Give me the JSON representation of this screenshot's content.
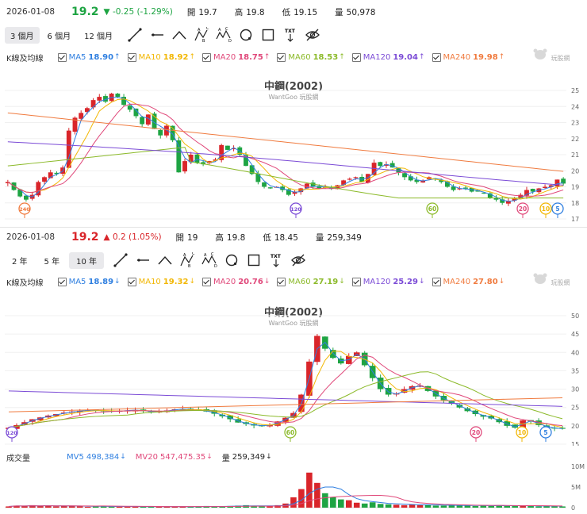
{
  "colors": {
    "up": "#d9252a",
    "down": "#1ea443",
    "ma5": "#2f7fe0",
    "ma10": "#f2b705",
    "ma20": "#e0487a",
    "ma60": "#8cba2a",
    "ma120": "#7b4bd6",
    "ma240": "#f07b3f"
  },
  "top": {
    "quote": {
      "date": "2026-01-08",
      "price": "19.2",
      "change": "▼ -0.25 (-1.29%)",
      "open_label": "開",
      "open": "19.7",
      "high_label": "高",
      "high": "19.8",
      "low_label": "低",
      "low": "19.15",
      "vol_label": "量",
      "volume": "50,978"
    },
    "ranges": [
      "3 個月",
      "6 個月",
      "12 個月"
    ],
    "active_range": 0,
    "ma_title": "K線及均線",
    "ma": [
      {
        "name": "MA5",
        "value": "18.90",
        "arrow": "↑",
        "color": "#2f7fe0"
      },
      {
        "name": "MA10",
        "value": "18.92",
        "arrow": "↑",
        "color": "#f2b705"
      },
      {
        "name": "MA20",
        "value": "18.75",
        "arrow": "↑",
        "color": "#e0487a"
      },
      {
        "name": "MA60",
        "value": "18.53",
        "arrow": "↑",
        "color": "#8cba2a"
      },
      {
        "name": "MA120",
        "value": "19.04",
        "arrow": "↑",
        "color": "#7b4bd6"
      },
      {
        "name": "MA240",
        "value": "19.98",
        "arrow": "↑",
        "color": "#f07b3f"
      }
    ],
    "title": "中鋼(2002)",
    "subtitle": "WantGoo 玩股網",
    "watermark": "玩股網"
  },
  "bottom": {
    "quote": {
      "date": "2026-01-08",
      "price": "19.2",
      "change": "▲ 0.2 (1.05%)",
      "open_label": "開",
      "open": "19",
      "high_label": "高",
      "high": "19.8",
      "low_label": "低",
      "low": "18.45",
      "vol_label": "量",
      "volume": "259,349"
    },
    "ranges": [
      "2 年",
      "5 年",
      "10 年"
    ],
    "active_range": 2,
    "ma_title": "K線及均線",
    "ma": [
      {
        "name": "MA5",
        "value": "18.89",
        "arrow": "↓",
        "color": "#2f7fe0"
      },
      {
        "name": "MA10",
        "value": "19.32",
        "arrow": "↓",
        "color": "#f2b705"
      },
      {
        "name": "MA20",
        "value": "20.76",
        "arrow": "↓",
        "color": "#e0487a"
      },
      {
        "name": "MA60",
        "value": "27.19",
        "arrow": "↓",
        "color": "#8cba2a"
      },
      {
        "name": "MA120",
        "value": "25.29",
        "arrow": "↓",
        "color": "#7b4bd6"
      },
      {
        "name": "MA240",
        "value": "27.80",
        "arrow": "↓",
        "color": "#f07b3f"
      }
    ],
    "title": "中鋼(2002)",
    "subtitle": "WantGoo 玩股網",
    "watermark": "玩股網",
    "vol_title": "成交量",
    "vol_legend": [
      {
        "name": "MV5",
        "value": "498,384",
        "arrow": "↓",
        "color": "#2f7fe0"
      },
      {
        "name": "MV20",
        "value": "547,475.35",
        "arrow": "↓",
        "color": "#e0487a"
      },
      {
        "name": "量",
        "value": "259,349",
        "arrow": "↓",
        "color": "#222222"
      }
    ]
  },
  "chart_data": [
    {
      "type": "candlestick",
      "title": "中鋼(2002)",
      "ylim": [
        17,
        25
      ],
      "y_ticks": [
        17,
        18,
        19,
        20,
        21,
        22,
        23,
        24,
        25
      ],
      "close": [
        19.3,
        18.8,
        18.4,
        18.2,
        18.5,
        19.3,
        19.6,
        19.9,
        19.8,
        20.2,
        22.5,
        23.3,
        23.6,
        23.9,
        24.4,
        24.6,
        24.3,
        24.8,
        24.6,
        24.1,
        23.8,
        23.4,
        22.9,
        23.5,
        22.6,
        22.2,
        22.8,
        21.9,
        19.9,
        20.6,
        21.0,
        20.5,
        20.4,
        20.6,
        20.7,
        21.6,
        21.3,
        21.4,
        21.0,
        20.3,
        19.8,
        19.3,
        19.0,
        18.9,
        19.0,
        18.8,
        18.5,
        18.7,
        18.9,
        19.2,
        19.0,
        18.9,
        19.0,
        18.9,
        19.1,
        19.4,
        19.5,
        19.6,
        19.3,
        19.8,
        20.5,
        20.3,
        20.4,
        20.2,
        19.9,
        19.6,
        19.4,
        19.3,
        19.4,
        19.6,
        19.5,
        19.3,
        19.0,
        18.8,
        18.9,
        18.9,
        18.7,
        18.7,
        18.6,
        18.3,
        18.2,
        18.0,
        18.1,
        18.3,
        18.5,
        18.8,
        18.7,
        18.9,
        19.0,
        19.1,
        19.45,
        19.2
      ],
      "markers": [
        "240",
        "120",
        "60",
        "20",
        "10",
        "5"
      ],
      "series": [
        {
          "name": "MA5",
          "color": "#2f7fe0"
        },
        {
          "name": "MA10",
          "color": "#f2b705"
        },
        {
          "name": "MA20",
          "color": "#e0487a"
        },
        {
          "name": "MA60",
          "color": "#8cba2a"
        },
        {
          "name": "MA120",
          "color": "#7b4bd6"
        },
        {
          "name": "MA240",
          "color": "#f07b3f"
        }
      ]
    },
    {
      "type": "candlestick",
      "title": "中鋼(2002)",
      "ylim": [
        15,
        50
      ],
      "y_ticks": [
        15,
        20,
        25,
        30,
        35,
        40,
        45,
        50
      ],
      "close": [
        19.5,
        20.2,
        21.0,
        21.8,
        22.3,
        22.8,
        23.2,
        23.6,
        23.9,
        24.1,
        24.3,
        24.2,
        24.0,
        23.9,
        24.1,
        24.2,
        24.3,
        24.0,
        23.8,
        23.9,
        24.2,
        24.5,
        24.6,
        24.4,
        24.2,
        23.9,
        23.3,
        22.6,
        21.8,
        20.9,
        20.5,
        20.1,
        20.0,
        20.3,
        21.2,
        22.2,
        23.5,
        28.5,
        37.5,
        44.5,
        41.0,
        38.5,
        37.0,
        39.0,
        40.0,
        36.5,
        33.0,
        30.0,
        28.5,
        28.8,
        30.0,
        30.8,
        31.0,
        29.5,
        28.0,
        27.0,
        26.0,
        25.0,
        24.0,
        23.2,
        22.5,
        22.0,
        21.0,
        20.0,
        19.5,
        21.5,
        21.2,
        20.2,
        19.5,
        19.3,
        19.2
      ],
      "markers": [
        "120",
        "60",
        "20",
        "10",
        "5"
      ]
    },
    {
      "type": "bar",
      "title": "成交量",
      "ylim": [
        0,
        10
      ],
      "unit": "M",
      "y_tick_labels": [
        "10M",
        "5M",
        "0"
      ],
      "values": [
        0.3,
        0.5,
        0.4,
        0.6,
        0.4,
        0.5,
        0.3,
        0.4,
        0.5,
        0.3,
        0.2,
        0.3,
        0.4,
        0.3,
        0.2,
        0.3,
        0.2,
        0.3,
        0.3,
        0.2,
        0.3,
        0.2,
        0.3,
        0.2,
        0.3,
        0.4,
        0.3,
        0.3,
        0.4,
        0.5,
        0.6,
        0.4,
        0.3,
        0.4,
        0.6,
        1.0,
        2.5,
        4.5,
        8.5,
        6.0,
        3.5,
        2.5,
        2.0,
        1.8,
        1.2,
        1.0,
        1.3,
        0.9,
        0.8,
        0.7,
        0.6,
        0.8,
        0.6,
        0.7,
        0.5,
        0.5,
        0.6,
        0.5,
        0.6,
        0.4,
        0.5,
        0.4,
        0.6,
        0.5,
        0.4,
        0.4,
        0.5,
        0.3,
        0.4,
        0.3,
        0.3
      ],
      "series": [
        {
          "name": "MV5",
          "color": "#2f7fe0"
        },
        {
          "name": "MV20",
          "color": "#e0487a"
        }
      ]
    }
  ]
}
